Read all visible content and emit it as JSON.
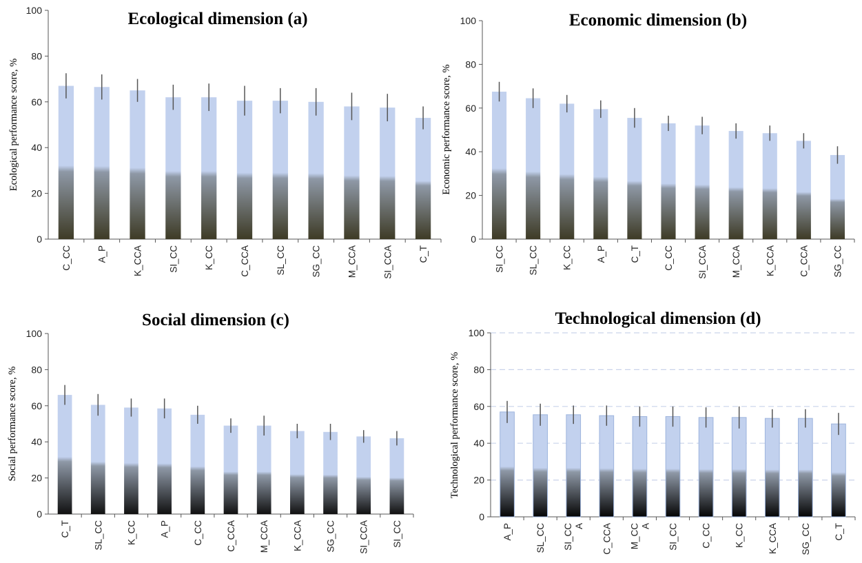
{
  "chart_data": [
    {
      "type": "bar",
      "title": "Ecological dimension (a)",
      "ylabel": "Ecological performance score, %",
      "xlabel": "",
      "ylim": [
        0,
        100
      ],
      "yticks": [
        "0",
        "20",
        "40",
        "60",
        "80",
        "100"
      ],
      "grid": false,
      "categories": [
        "C_CC",
        "A_P",
        "K_CCA",
        "SI_CC",
        "K_CC",
        "C_CCA",
        "SL_CC",
        "SG_CC",
        "M_CCA",
        "SI_CCA",
        "C_T"
      ],
      "values": [
        67,
        66.5,
        65,
        62,
        62,
        60.5,
        60.5,
        60,
        58,
        57.5,
        53
      ],
      "error": [
        5.5,
        5.5,
        5,
        5.5,
        6,
        6.5,
        5.5,
        6,
        6,
        6,
        5
      ],
      "colors": {
        "bar_top": "#c2d1ee",
        "bar_bottom": "#3e3b26",
        "error_bar": "#555555"
      }
    },
    {
      "type": "bar",
      "title": "Economic dimension (b)",
      "ylabel": "Economic performance score,  %",
      "xlabel": "",
      "ylim": [
        0,
        100
      ],
      "yticks": [
        "0",
        "20",
        "40",
        "60",
        "80",
        "100"
      ],
      "grid": false,
      "categories": [
        "SI_CC",
        "SL_CC",
        "K_CC",
        "A_P",
        "C_T",
        "C_CC",
        "SI_CCA",
        "M_CCA",
        "K_CCA",
        "C_CCA",
        "SG_CC"
      ],
      "values": [
        67.5,
        64.5,
        62,
        59.5,
        55.5,
        53,
        52,
        49.5,
        48.5,
        45,
        38.5
      ],
      "error": [
        4.5,
        4.5,
        4,
        4,
        4.5,
        3.5,
        4,
        3.5,
        3.5,
        3.5,
        4
      ],
      "colors": {
        "bar_top": "#c2d1ee",
        "bar_bottom": "#3e3b26",
        "error_bar": "#555555"
      }
    },
    {
      "type": "bar",
      "title": "Social dimension (c)",
      "ylabel": "Social performance score, %",
      "xlabel": "",
      "ylim": [
        0,
        100
      ],
      "yticks": [
        "0",
        "20",
        "40",
        "60",
        "80",
        "100"
      ],
      "grid": false,
      "categories": [
        "C_T",
        "SL_CC",
        "K_CC",
        "A_P",
        "C_CC",
        "C_CCA",
        "M_CCA",
        "K_CCA",
        "SG_CC",
        "SI_CCA",
        "SI_CC"
      ],
      "values": [
        66,
        60.5,
        59,
        58.5,
        55,
        49,
        49,
        46,
        45.5,
        43,
        42
      ],
      "error": [
        5.5,
        6,
        5,
        5.5,
        5,
        4,
        5.5,
        4,
        4.5,
        3.5,
        4
      ],
      "colors": {
        "bar_top": "#c2d1ee",
        "bar_bottom": "#111111",
        "error_bar": "#555555"
      }
    },
    {
      "type": "bar",
      "title": "Technological dimension (d)",
      "ylabel": "Technological performance score, %",
      "xlabel": "",
      "ylim": [
        0,
        100
      ],
      "yticks": [
        "0",
        "20",
        "40",
        "60",
        "80",
        "100"
      ],
      "grid": true,
      "categories": [
        [
          "A_P"
        ],
        [
          "SL_CC"
        ],
        [
          "SI_CC",
          "A"
        ],
        [
          "C_CCA"
        ],
        [
          "M_CC",
          "A"
        ],
        [
          "SI_CC"
        ],
        [
          "C_CC"
        ],
        [
          "K_CC"
        ],
        [
          "K_CCA"
        ],
        [
          "SG_CC"
        ],
        [
          "C_T"
        ]
      ],
      "values": [
        57,
        55.5,
        55.5,
        55,
        54.5,
        54.5,
        54,
        54,
        53.5,
        53.5,
        50.5
      ],
      "error": [
        6,
        6,
        5,
        5.5,
        5.5,
        5.5,
        5.5,
        6,
        5,
        5,
        6
      ],
      "colors": {
        "bar_top": "#c2d1ee",
        "bar_bottom": "#050505",
        "bar_outline": "#9db4dd",
        "error_bar": "#555555",
        "grid": "#c9d3ea"
      }
    }
  ]
}
